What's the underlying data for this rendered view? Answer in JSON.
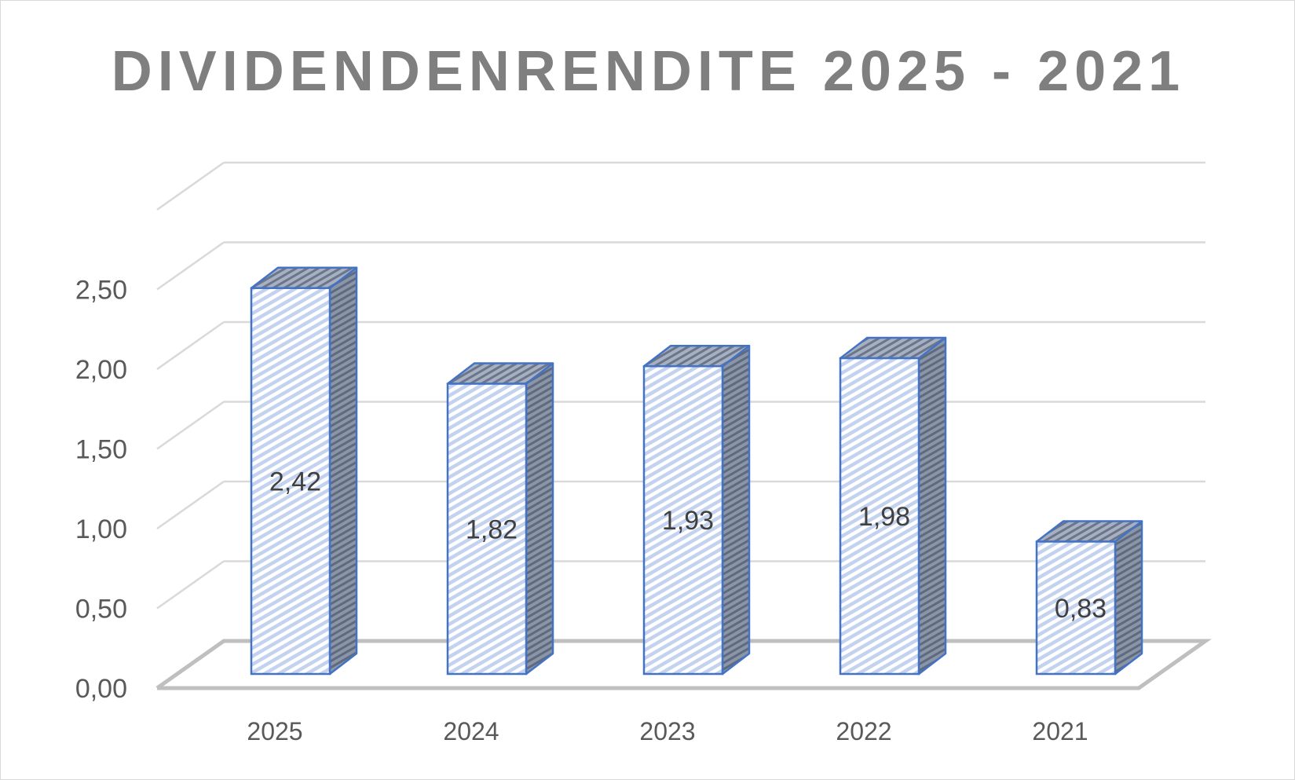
{
  "chart_data": {
    "type": "bar",
    "title": "DIVIDENDENRENDITE 2025 - 2021",
    "categories": [
      "2025",
      "2024",
      "2023",
      "2022",
      "2021"
    ],
    "values": [
      2.42,
      1.82,
      1.93,
      1.98,
      0.83
    ],
    "value_labels": [
      "2,42",
      "1,82",
      "1,93",
      "1,98",
      "0,83"
    ],
    "y_ticks": [
      "0,00",
      "0,50",
      "1,00",
      "1,50",
      "2,00",
      "2,50"
    ],
    "ylim": [
      0,
      2.5
    ],
    "xlabel": "",
    "ylabel": "",
    "grid": true,
    "legend": "none",
    "style": "3d-column",
    "colors": {
      "bar_outline": "#4472c4",
      "bar_fill": "#dce6f7",
      "bar_side": "#7f8ba0",
      "gridline": "#d9d9d9",
      "floor": "#bfbfbf",
      "title": "#7f7f7f"
    }
  }
}
